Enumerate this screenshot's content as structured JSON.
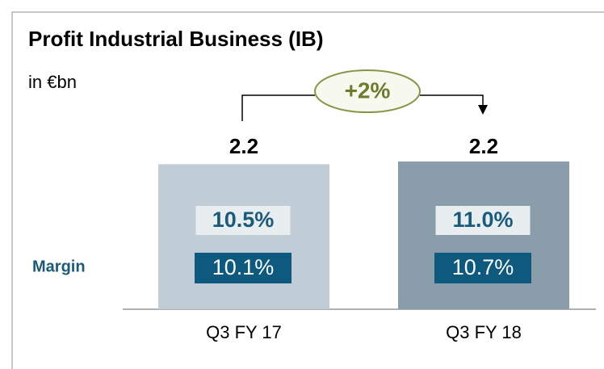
{
  "chart_data": {
    "type": "bar",
    "title": "Profit Industrial Business (IB)",
    "subtitle": "in €bn",
    "categories": [
      "Q3 FY 17",
      "Q3 FY 18"
    ],
    "values": [
      2.16,
      2.2
    ],
    "value_labels": [
      "2.2",
      "2.2"
    ],
    "colors": [
      "#c0cdd6",
      "#8a9dab"
    ],
    "ylim": [
      0,
      2.4
    ],
    "annotation": "+2%",
    "margin_label": "Margin",
    "margins": [
      {
        "values": [
          10.5,
          11.0
        ],
        "value_labels": [
          "10.5%",
          "11.0%"
        ]
      },
      {
        "values": [
          10.1,
          10.7
        ],
        "value_labels": [
          "10.1%",
          "10.7%"
        ]
      }
    ]
  }
}
